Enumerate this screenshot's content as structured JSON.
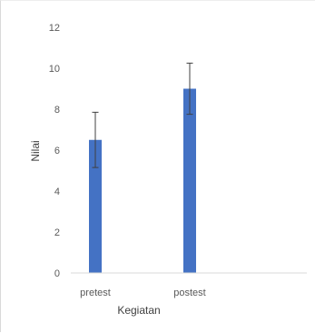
{
  "chart_data": {
    "type": "bar",
    "title": "",
    "xlabel": "Kegiatan",
    "ylabel": "Nilai",
    "categories": [
      "pretest",
      "postest"
    ],
    "values": [
      6.5,
      9.0
    ],
    "error": [
      1.35,
      1.25
    ],
    "ylim": [
      0,
      12
    ],
    "yticks": [
      0,
      2,
      4,
      6,
      8,
      10,
      12
    ],
    "ytick_labels": [
      "0",
      "2",
      "4",
      "6",
      "8",
      "10",
      "12"
    ],
    "grid": false,
    "legend": "none",
    "bar_color": "#4472c4",
    "error_color": "#404040"
  }
}
